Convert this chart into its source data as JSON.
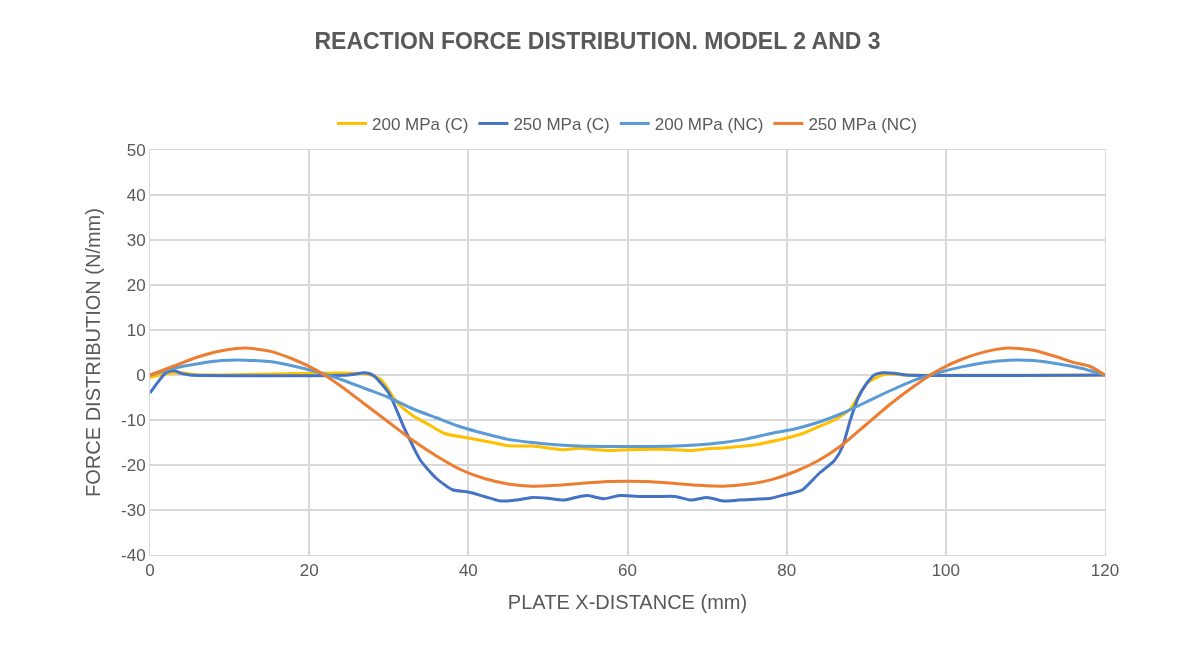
{
  "chart_data": {
    "type": "line",
    "title": "REACTION FORCE DISTRIBUTION. MODEL 2 AND 3",
    "xlabel": "PLATE X-DISTANCE (mm)",
    "ylabel": "FORCE DISTRIBUTION (N/mm)",
    "xlim": [
      0,
      120
    ],
    "xticks": [
      0,
      20,
      40,
      60,
      80,
      100,
      120
    ],
    "ylim": [
      -40,
      50
    ],
    "yticks": [
      -40,
      -30,
      -20,
      -10,
      0,
      10,
      20,
      30,
      40,
      50
    ],
    "grid": true,
    "legend": "top",
    "marker": "none",
    "line_style": "solid",
    "series": [
      {
        "name": "200 MPa (C)",
        "color": "#ffc000",
        "x": [
          0,
          2,
          4,
          6,
          27,
          29,
          31,
          33,
          35,
          37,
          40,
          43,
          45,
          48,
          50,
          52,
          54,
          56,
          58,
          60,
          64,
          66,
          68,
          70,
          72,
          76,
          80,
          82,
          84,
          86,
          88,
          90,
          92,
          93,
          95,
          120
        ],
        "values": [
          -0.5,
          0.3,
          0.5,
          0,
          0.3,
          -1,
          -6,
          -9,
          -11,
          -13,
          -14,
          -15,
          -15.7,
          -15.8,
          -16.2,
          -16.6,
          -16.3,
          -16.6,
          -16.8,
          -16.6,
          -16.5,
          -16.6,
          -16.8,
          -16.4,
          -16.2,
          -15.5,
          -14,
          -13,
          -11.5,
          -10,
          -7.5,
          -2,
          0,
          0.2,
          0,
          0
        ]
      },
      {
        "name": "250 MPa (C)",
        "color": "#4472c4",
        "x": [
          0,
          2,
          3,
          4,
          5,
          25,
          27,
          28,
          30,
          32,
          34,
          36,
          38,
          40,
          42,
          44,
          46,
          48,
          50,
          52,
          54,
          55,
          57,
          59,
          62,
          64,
          66,
          68,
          70,
          72,
          74,
          76,
          78,
          80,
          82,
          84,
          86,
          87,
          88,
          89,
          90,
          91,
          92,
          94,
          95,
          120
        ],
        "values": [
          -4,
          0.5,
          1,
          0.3,
          0,
          0,
          0.5,
          0,
          -4,
          -12,
          -19,
          -23,
          -25.5,
          -26,
          -27,
          -28,
          -27.8,
          -27.2,
          -27.4,
          -27.8,
          -27,
          -26.8,
          -27.5,
          -26.8,
          -27,
          -27,
          -27,
          -27.8,
          -27.2,
          -28,
          -27.8,
          -27.6,
          -27.4,
          -26.5,
          -25.5,
          -22,
          -19,
          -16,
          -10,
          -5,
          -2,
          0,
          0.5,
          0.3,
          0,
          0
        ]
      },
      {
        "name": "200 MPa (NC)",
        "color": "#5b9bd5",
        "x": [
          0,
          3,
          6,
          9,
          12,
          15,
          18,
          21,
          24,
          27,
          30,
          33,
          36,
          39,
          42,
          45,
          48,
          51,
          54,
          57,
          60,
          63,
          66,
          69,
          72,
          75,
          78,
          81,
          84,
          87,
          90,
          93,
          96,
          99,
          102,
          105,
          108,
          111,
          114,
          117,
          120
        ],
        "values": [
          0,
          1.5,
          2.5,
          3.2,
          3.3,
          3,
          2,
          0.7,
          -1,
          -3,
          -5,
          -7.5,
          -9.5,
          -11.5,
          -13,
          -14.3,
          -15,
          -15.5,
          -15.8,
          -15.9,
          -15.9,
          -15.9,
          -15.8,
          -15.5,
          -15,
          -14.2,
          -13,
          -12,
          -10.5,
          -8.5,
          -6,
          -3.5,
          -1.2,
          0.5,
          1.8,
          2.8,
          3.3,
          3.2,
          2.5,
          1.5,
          0
        ]
      },
      {
        "name": "250 MPa (NC)",
        "color": "#ed7d31",
        "x": [
          0,
          3,
          6,
          9,
          12,
          15,
          18,
          21,
          24,
          27,
          30,
          33,
          36,
          39,
          42,
          45,
          48,
          51,
          54,
          57,
          60,
          63,
          66,
          69,
          72,
          75,
          78,
          81,
          84,
          87,
          90,
          93,
          96,
          99,
          102,
          105,
          108,
          111,
          114,
          116,
          118,
          120
        ],
        "values": [
          0,
          2,
          4,
          5.4,
          6,
          5.3,
          3.5,
          1,
          -2.5,
          -6.5,
          -10.5,
          -14.5,
          -18,
          -21,
          -23,
          -24.2,
          -24.7,
          -24.5,
          -24.1,
          -23.7,
          -23.6,
          -23.7,
          -24.1,
          -24.5,
          -24.7,
          -24.3,
          -23.3,
          -21.5,
          -19,
          -15.5,
          -11,
          -6.5,
          -2.5,
          1,
          3.5,
          5.2,
          6,
          5.5,
          4,
          2.8,
          2,
          0
        ]
      }
    ]
  }
}
